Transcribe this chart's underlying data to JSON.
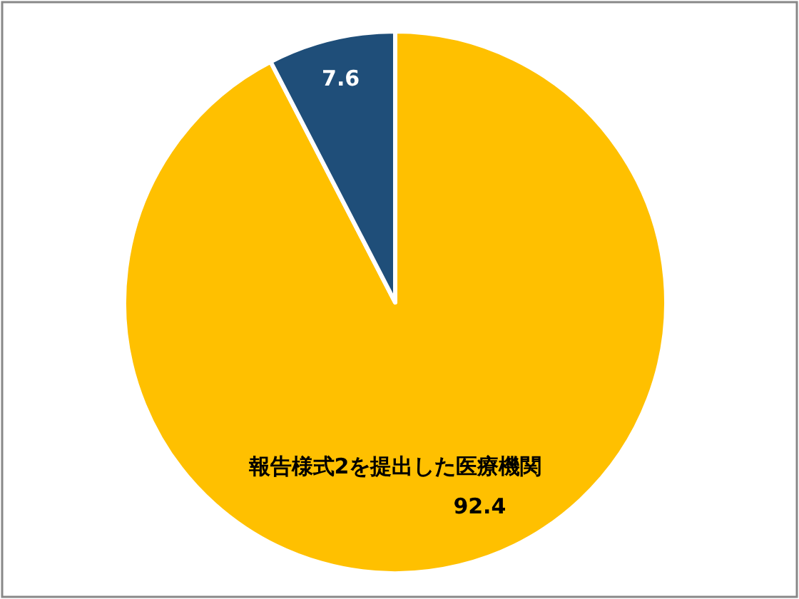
{
  "chart_data": {
    "type": "pie",
    "categories": [
      "報告様式2を提出した医療機関",
      null
    ],
    "values": [
      92.4,
      7.6
    ],
    "colors": [
      "#ffc000",
      "#1f4e79"
    ],
    "data_labels": true
  }
}
